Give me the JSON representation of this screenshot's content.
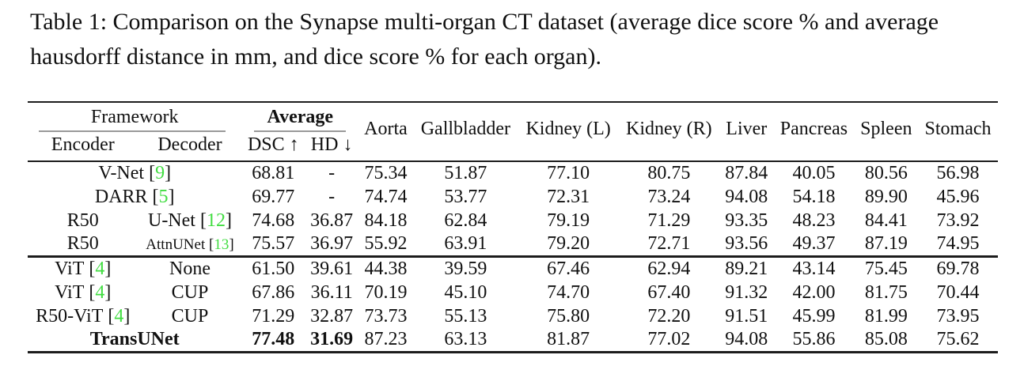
{
  "caption": {
    "text": "Table 1: Comparison on the Synapse multi-organ CT dataset (average dice score % and average hausdorff distance in mm, and dice score % for each organ)."
  },
  "colors": {
    "citation_green": "#42dd42",
    "rule_dark": "#1c1c1c",
    "rule_light": "#999999",
    "text": "#111111",
    "background": "#ffffff"
  },
  "table": {
    "framework_header": "Framework",
    "average_header": "Average",
    "encoder_header": "Encoder",
    "decoder_header": "Decoder",
    "dsc_header": "DSC ↑",
    "hd_header": "HD ↓",
    "organ_headers": [
      "Aorta",
      "Gallbladder",
      "Kidney (L)",
      "Kidney (R)",
      "Liver",
      "Pancreas",
      "Spleen",
      "Stomach"
    ],
    "cite_brackets": [
      "[",
      "]"
    ],
    "rows": [
      {
        "encoder": {
          "text": "V-Net",
          "cite": "9"
        },
        "decoder": null,
        "merged": true,
        "values": [
          "68.81",
          "-",
          "75.34",
          "51.87",
          "77.10",
          "80.75",
          "87.84",
          "40.05",
          "80.56",
          "56.98"
        ]
      },
      {
        "encoder": {
          "text": "DARR",
          "cite": "5"
        },
        "decoder": null,
        "merged": true,
        "values": [
          "69.77",
          "-",
          "74.74",
          "53.77",
          "72.31",
          "73.24",
          "94.08",
          "54.18",
          "89.90",
          "45.96"
        ]
      },
      {
        "encoder": {
          "text": "R50"
        },
        "decoder": {
          "text": "U-Net",
          "cite": "12"
        },
        "merged": false,
        "values": [
          "74.68",
          "36.87",
          "84.18",
          "62.84",
          "79.19",
          "71.29",
          "93.35",
          "48.23",
          "84.41",
          "73.92"
        ]
      },
      {
        "encoder": {
          "text": "R50"
        },
        "decoder": {
          "text": "AttnUNet",
          "cite": "13",
          "small": true
        },
        "merged": false,
        "values": [
          "75.57",
          "36.97",
          "55.92",
          "63.91",
          "79.20",
          "72.71",
          "93.56",
          "49.37",
          "87.19",
          "74.95"
        ]
      },
      {
        "encoder": {
          "text": "ViT",
          "cite": "4"
        },
        "decoder": {
          "text": "None"
        },
        "merged": false,
        "group_start": true,
        "values": [
          "61.50",
          "39.61",
          "44.38",
          "39.59",
          "67.46",
          "62.94",
          "89.21",
          "43.14",
          "75.45",
          "69.78"
        ]
      },
      {
        "encoder": {
          "text": "ViT",
          "cite": "4"
        },
        "decoder": {
          "text": "CUP"
        },
        "merged": false,
        "values": [
          "67.86",
          "36.11",
          "70.19",
          "45.10",
          "74.70",
          "67.40",
          "91.32",
          "42.00",
          "81.75",
          "70.44"
        ]
      },
      {
        "encoder": {
          "text": "R50-ViT",
          "cite": "4"
        },
        "decoder": {
          "text": "CUP"
        },
        "merged": false,
        "values": [
          "71.29",
          "32.87",
          "73.73",
          "55.13",
          "75.80",
          "72.20",
          "91.51",
          "45.99",
          "81.99",
          "73.95"
        ]
      },
      {
        "encoder": {
          "text": "TransUNet",
          "bold": true
        },
        "decoder": null,
        "merged": true,
        "bold_value_cols": [
          0,
          1
        ],
        "values": [
          "77.48",
          "31.69",
          "87.23",
          "63.13",
          "81.87",
          "77.02",
          "94.08",
          "55.86",
          "85.08",
          "75.62"
        ]
      }
    ]
  }
}
